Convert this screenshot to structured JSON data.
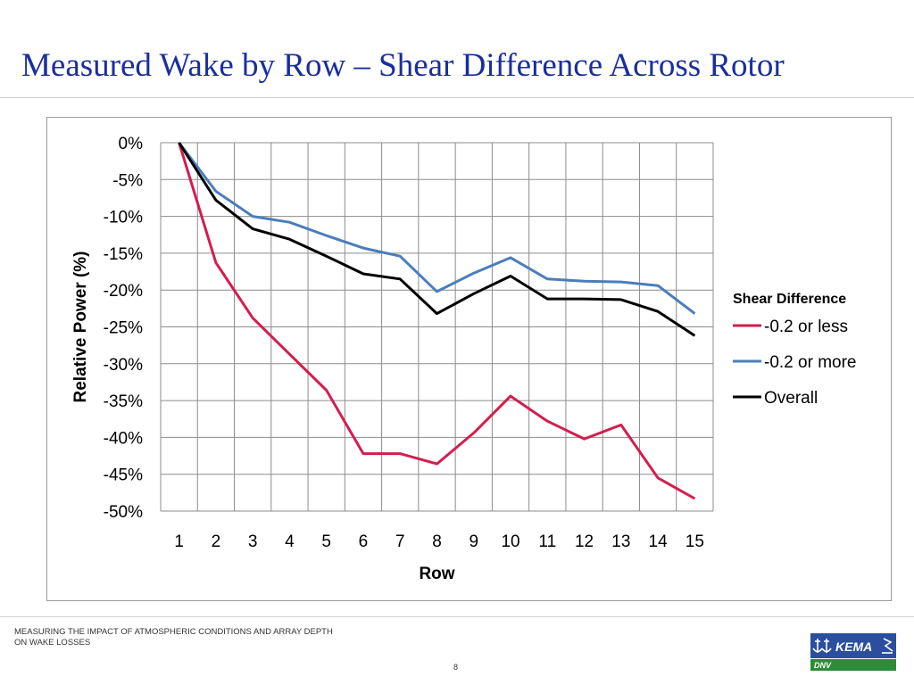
{
  "slide": {
    "title": "Measured Wake by Row – Shear Difference Across Rotor",
    "footer": "MEASURING THE IMPACT OF ATMOSPHERIC CONDITIONS AND ARRAY DEPTH ON WAKE LOSSES",
    "page_number": "8",
    "logo": {
      "text_top": "KEMA",
      "text_bottom": "DNV",
      "colors": {
        "blue": "#2b4f9e",
        "green": "#2e8b3a"
      }
    }
  },
  "chart_data": {
    "type": "line",
    "title": "",
    "xlabel": "Row",
    "ylabel": "Relative Power (%)",
    "categories": [
      "1",
      "2",
      "3",
      "4",
      "5",
      "6",
      "7",
      "8",
      "9",
      "10",
      "11",
      "12",
      "13",
      "14",
      "15"
    ],
    "ylim": [
      -50,
      0
    ],
    "yticks": [
      0,
      -5,
      -10,
      -15,
      -20,
      -25,
      -30,
      -35,
      -40,
      -45,
      -50
    ],
    "ytick_labels": [
      "0%",
      "-5%",
      "-10%",
      "-15%",
      "-20%",
      "-25%",
      "-30%",
      "-35%",
      "-40%",
      "-45%",
      "-50%"
    ],
    "grid": true,
    "legend": {
      "title": "Shear Difference",
      "position": "right"
    },
    "series": [
      {
        "name": "-0.2 or less",
        "color": "#d41d4e",
        "values": [
          0,
          -16.3,
          -23.8,
          -28.7,
          -33.6,
          -42.2,
          -42.2,
          -43.6,
          -39.4,
          -34.4,
          -37.8,
          -40.2,
          -38.3,
          -45.5,
          -48.3
        ]
      },
      {
        "name": "-0.2 or more",
        "color": "#4a7ebb",
        "values": [
          0,
          -6.6,
          -10.0,
          -10.8,
          -12.6,
          -14.3,
          -15.4,
          -20.2,
          -17.7,
          -15.6,
          -18.5,
          -18.8,
          -18.9,
          -19.4,
          -23.2
        ]
      },
      {
        "name": "Overall",
        "color": "#000000",
        "values": [
          0,
          -7.8,
          -11.7,
          -13.1,
          -15.4,
          -17.8,
          -18.5,
          -23.2,
          -20.5,
          -18.1,
          -21.2,
          -21.2,
          -21.3,
          -22.9,
          -26.2
        ]
      }
    ]
  }
}
